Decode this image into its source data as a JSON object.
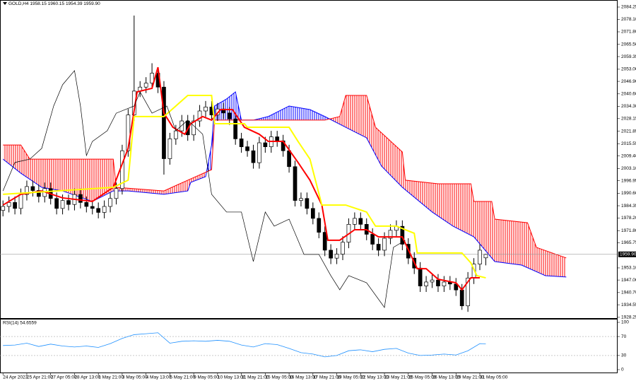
{
  "chart_data": [
    {
      "type": "candlestick",
      "title": "GOLD,H4 1958.15 1960.15 1954.39 1959.90",
      "xlim": [
        -1,
        206
      ],
      "ylim": [
        1927.5,
        2087.8
      ],
      "xticks": [
        {
          "value": 0,
          "label": "24 Apr 2023"
        },
        {
          "value": 8,
          "label": "25 Apr 21:00"
        },
        {
          "value": 16,
          "label": "27 Apr 05:00"
        },
        {
          "value": 24,
          "label": "28 Apr 13:00"
        },
        {
          "value": 32,
          "label": "1 May 21:00"
        },
        {
          "value": 40,
          "label": "3 May 05:00"
        },
        {
          "value": 48,
          "label": "4 May 13:00"
        },
        {
          "value": 56,
          "label": "5 May 21:00"
        },
        {
          "value": 64,
          "label": "9 May 05:00"
        },
        {
          "value": 72,
          "label": "10 May 13:00"
        },
        {
          "value": 80,
          "label": "11 May 21:00"
        },
        {
          "value": 88,
          "label": "15 May 05:00"
        },
        {
          "value": 96,
          "label": "16 May 13:00"
        },
        {
          "value": 104,
          "label": "17 May 21:00"
        },
        {
          "value": 112,
          "label": "19 May 05:00"
        },
        {
          "value": 120,
          "label": "22 May 13:00"
        },
        {
          "value": 128,
          "label": "23 May 21:00"
        },
        {
          "value": 136,
          "label": "25 May 05:00"
        },
        {
          "value": 144,
          "label": "26 May 13:00"
        },
        {
          "value": 152,
          "label": "29 May 21:00"
        },
        {
          "value": 160,
          "label": "31 May 05:00"
        }
      ],
      "yticks": [
        2084.25,
        {
          "value": 2078.1,
          "label": "2078.10"
        },
        {
          "value": 2071.8,
          "label": "2071.80"
        },
        {
          "value": 2065.5,
          "label": "2065.50"
        },
        2059.35,
        {
          "value": 2053,
          "label": "2053.00"
        },
        {
          "value": 2046.9,
          "label": "2046.90"
        },
        {
          "value": 2040.6,
          "label": "2040.60"
        },
        {
          "value": 2034.3,
          "label": "2034.30"
        },
        2028.15,
        2021.85,
        2015.55,
        {
          "value": 2009.4,
          "label": "2009.40"
        },
        {
          "value": 2003.1,
          "label": "2003.10"
        },
        1996.95,
        {
          "value": 1990.6,
          "label": "1990.60"
        },
        1984.35,
        {
          "value": 1978.2,
          "label": "1978.20"
        },
        {
          "value": 1971.8,
          "label": "1971.80"
        },
        1965.75,
        {
          "value": 1953.1,
          "label": "1953.10"
        },
        {
          "value": 1947,
          "label": "1947.00"
        },
        {
          "value": 1940.7,
          "label": "1940.70"
        },
        1934.55,
        1928.25
      ],
      "last_price": {
        "value": 1959.9,
        "label": "1959.90"
      },
      "candles": {
        "x": [
          0,
          2,
          4,
          6,
          8,
          10,
          12,
          14,
          16,
          18,
          20,
          22,
          24,
          26,
          28,
          30,
          32,
          34,
          36,
          38,
          40,
          42,
          44,
          46,
          48,
          50,
          52,
          54,
          56,
          58,
          60,
          62,
          64,
          66,
          68,
          70,
          72,
          74,
          76,
          78,
          80,
          82,
          84,
          86,
          88,
          90,
          92,
          94,
          96,
          98,
          100,
          102,
          104,
          106,
          108,
          110,
          112,
          114,
          116,
          118,
          120,
          122,
          124,
          126,
          128,
          130,
          132,
          134,
          136,
          138,
          140,
          142,
          144,
          146,
          148,
          150,
          152,
          154,
          156,
          158,
          160,
          162
        ],
        "open": [
          1982,
          1984,
          1986,
          1983,
          1990,
          1994,
          1992,
          1989,
          1993,
          1988,
          1983,
          1987,
          1985,
          1990,
          1986,
          1984,
          1983,
          1981,
          1984,
          1988,
          1993,
          2012,
          2030,
          2042,
          2044,
          2046,
          2051,
          2044,
          2008,
          2018,
          2022,
          2027,
          2020,
          2027,
          2032,
          2034,
          2030,
          2033,
          2031,
          2028,
          2018,
          2014,
          2012,
          2006,
          2016,
          2014,
          2019,
          2017,
          2012,
          2004,
          1987,
          1988,
          1983,
          1978,
          1971,
          1962,
          1958,
          1960,
          1966,
          1975,
          1978,
          1975,
          1970,
          1965,
          1962,
          1968,
          1972,
          1974,
          1965,
          1958,
          1953,
          1944,
          1946,
          1947,
          1944,
          1946,
          1945,
          1942,
          1934,
          1948,
          1955,
          1958.15
        ],
        "high": [
          1987,
          1989,
          1989,
          1993,
          1997,
          1997,
          1995,
          1996,
          1996,
          1991,
          1990,
          1990,
          1993,
          1993,
          1989,
          1987,
          1986,
          1987,
          1991,
          1996,
          2015,
          2033,
          2080,
          2047,
          2049,
          2056,
          2054,
          2047,
          2021,
          2025,
          2030,
          2030,
          2030,
          2035,
          2037,
          2037,
          2036,
          2036,
          2034,
          2031,
          2021,
          2017,
          2015,
          2019,
          2019,
          2022,
          2022,
          2020,
          2015,
          2007,
          1991,
          1991,
          1986,
          1981,
          1974,
          1965,
          1963,
          1969,
          1978,
          1981,
          1981,
          1978,
          1973,
          1968,
          1971,
          1975,
          1977,
          1977,
          1968,
          1961,
          1956,
          1949,
          1950,
          1950,
          1949,
          1949,
          1948,
          1945,
          1951,
          1958,
          1965,
          1960.15
        ],
        "low": [
          1979,
          1981,
          1980,
          1980,
          1987,
          1989,
          1986,
          1986,
          1985,
          1980,
          1980,
          1982,
          1982,
          1983,
          1981,
          1980,
          1978,
          1978,
          1981,
          1985,
          1990,
          2009,
          2027,
          2039,
          2041,
          2043,
          2041,
          2000,
          2005,
          2015,
          2019,
          2017,
          2017,
          2024,
          2029,
          2027,
          2027,
          2028,
          2025,
          2015,
          2011,
          2009,
          2003,
          2003,
          2011,
          2011,
          2014,
          2009,
          2001,
          1984,
          1984,
          1980,
          1975,
          1968,
          1959,
          1955,
          1955,
          1957,
          1963,
          1972,
          1972,
          1967,
          1962,
          1959,
          1959,
          1965,
          1969,
          1962,
          1955,
          1950,
          1941,
          1941,
          1943,
          1941,
          1941,
          1942,
          1939,
          1932,
          1931,
          1945,
          1952,
          1954.39
        ],
        "close": [
          1984,
          1986,
          1983,
          1990,
          1994,
          1992,
          1989,
          1993,
          1988,
          1983,
          1987,
          1985,
          1990,
          1986,
          1984,
          1983,
          1981,
          1984,
          1988,
          1993,
          2012,
          2030,
          2042,
          2044,
          2046,
          2051,
          2044,
          2008,
          2018,
          2022,
          2027,
          2020,
          2027,
          2032,
          2034,
          2030,
          2033,
          2031,
          2028,
          2018,
          2014,
          2012,
          2006,
          2016,
          2014,
          2019,
          2017,
          2012,
          2004,
          1987,
          1988,
          1983,
          1978,
          1971,
          1962,
          1958,
          1960,
          1966,
          1975,
          1978,
          1975,
          1970,
          1965,
          1962,
          1968,
          1972,
          1974,
          1965,
          1958,
          1953,
          1944,
          1946,
          1947,
          1944,
          1946,
          1945,
          1942,
          1934,
          1948,
          1955,
          1962,
          1959.9
        ],
        "up_color": "#ffffff",
        "down_color": "#000000"
      },
      "cloud": {
        "span_a": {
          "color": "#0000ff",
          "x": [
            0,
            6,
            13,
            20,
            30,
            37,
            42,
            54,
            62,
            63,
            68,
            70,
            71,
            75,
            78,
            80,
            84,
            89,
            96,
            103,
            108,
            115,
            122,
            127,
            134,
            144,
            151,
            158,
            165,
            174,
            182,
            189
          ],
          "values": [
            2007.8,
            2000.7,
            1993.6,
            1991.8,
            1986.5,
            1991.8,
            1991.8,
            1990.1,
            1991.8,
            1996.1,
            1999.0,
            2014.9,
            2034.5,
            2038.0,
            2041.6,
            2027.4,
            2027.4,
            2029.2,
            2034.5,
            2032.7,
            2029.2,
            2023.8,
            2018.5,
            2004.3,
            1993.6,
            1981.2,
            1974.1,
            1968.7,
            1956.3,
            1954.5,
            1949.2,
            1948.5
          ]
        },
        "span_b": {
          "color": "#ff0000",
          "x": [
            0,
            6,
            9,
            37,
            38,
            54,
            62,
            70,
            71,
            80,
            94,
            108,
            113,
            115,
            122,
            125,
            134,
            135,
            146,
            157,
            158,
            164,
            165,
            176,
            179,
            189
          ],
          "values": [
            2014.9,
            2014.9,
            2007.8,
            2007.8,
            1993.6,
            1991.8,
            1997.2,
            2002.5,
            2027.4,
            2027.4,
            2027.4,
            2027.4,
            2029.2,
            2039.8,
            2039.8,
            2023.8,
            2011.4,
            1997.2,
            1995.4,
            1995.4,
            1986.5,
            1986.5,
            1977.6,
            1975.8,
            1963.4,
            1958.1
          ]
        },
        "bull_color": "#0000ff",
        "bear_color": "#ff0000"
      },
      "series": [
        {
          "color": "#ff0000",
          "width": 2,
          "x": [
            0,
            6,
            13,
            20,
            30,
            37,
            42,
            45,
            50,
            52,
            54,
            57,
            61,
            63,
            67,
            70,
            73,
            77,
            81,
            86,
            89,
            94,
            99,
            103,
            107,
            109,
            113,
            118,
            122,
            126,
            131,
            134,
            139,
            142,
            146,
            152,
            154,
            157,
            160
          ],
          "values": [
            1984.7,
            1990.1,
            1991.8,
            1988.3,
            1986.5,
            1993.6,
            2013.2,
            2041.6,
            2043.4,
            2054.0,
            2030.9,
            2023.8,
            2020.3,
            2025.6,
            2029.2,
            2027.4,
            2032.7,
            2032.7,
            2023.8,
            2020.3,
            2016.7,
            2016.7,
            2006.1,
            1997.2,
            1984.7,
            1967.0,
            1967.0,
            1972.3,
            1972.3,
            1968.7,
            1968.7,
            1968.7,
            1952.7,
            1952.7,
            1947.4,
            1945.6,
            1942.1,
            1948.1,
            1948.1
          ]
        },
        {
          "color": "#ffff00",
          "width": 2,
          "x": [
            0,
            11,
            37,
            42,
            44,
            54,
            62,
            70,
            71,
            81,
            82,
            96,
            99,
            103,
            107,
            115,
            122,
            125,
            132,
            138,
            139,
            154,
            157,
            159,
            162
          ],
          "values": [
            1990.1,
            1991.1,
            1993.6,
            1997.2,
            2029.2,
            2029.2,
            2039.8,
            2039.8,
            2025.6,
            2025.6,
            2023.8,
            2023.8,
            2016.7,
            2007.8,
            1984.7,
            1984.7,
            1981.2,
            1974.1,
            1974.1,
            1970.5,
            1960.6,
            1960.6,
            1955.6,
            1949.2,
            1948.1
          ]
        },
        {
          "color": "#000000",
          "width": 0.7,
          "x": [
            0,
            4,
            9,
            13,
            17,
            20,
            24,
            26,
            28,
            30,
            35,
            38,
            44,
            46,
            50,
            55,
            58,
            62,
            67,
            70,
            75,
            80,
            84,
            88,
            91,
            96,
            101,
            106,
            110,
            113,
            116,
            122,
            128,
            131,
            135
          ],
          "values": [
            1991.8,
            2006.1,
            2007.8,
            2013.2,
            2034.5,
            2045.2,
            2052.3,
            2034.5,
            2009.6,
            2016.7,
            2022.1,
            2030.9,
            2034.5,
            2041.6,
            2030.9,
            2034.5,
            2022.1,
            2027.4,
            2020.3,
            1990.1,
            1981.2,
            1981.2,
            1956.3,
            1981.2,
            1974.1,
            1977.6,
            1959.9,
            1959.9,
            1949.2,
            1942.1,
            1949.2,
            1945.6,
            1933.2,
            1963.4,
            1967.0
          ]
        }
      ]
    },
    {
      "type": "line",
      "title": "RSI(14) 54.6559",
      "xlim": [
        -1,
        206
      ],
      "ylim": [
        -6,
        106
      ],
      "yticks": [
        100,
        70,
        30,
        0
      ],
      "levels": [
        70,
        30
      ],
      "color": "#1e90ff",
      "x": [
        0,
        4,
        8,
        12,
        16,
        20,
        24,
        28,
        32,
        36,
        40,
        44,
        48,
        52,
        56,
        60,
        64,
        68,
        72,
        76,
        80,
        84,
        88,
        92,
        96,
        100,
        104,
        108,
        112,
        116,
        120,
        124,
        128,
        132,
        136,
        140,
        144,
        148,
        152,
        156,
        160,
        162
      ],
      "values": [
        51,
        52,
        56,
        49,
        54,
        50,
        48,
        50,
        47,
        55,
        66,
        74,
        76,
        78,
        56,
        60,
        61,
        60,
        62,
        60,
        52,
        48,
        55,
        53,
        45,
        36,
        33,
        27,
        30,
        40,
        42,
        38,
        43,
        45,
        35,
        30,
        31,
        33,
        31,
        40,
        55,
        54.6559
      ]
    }
  ]
}
